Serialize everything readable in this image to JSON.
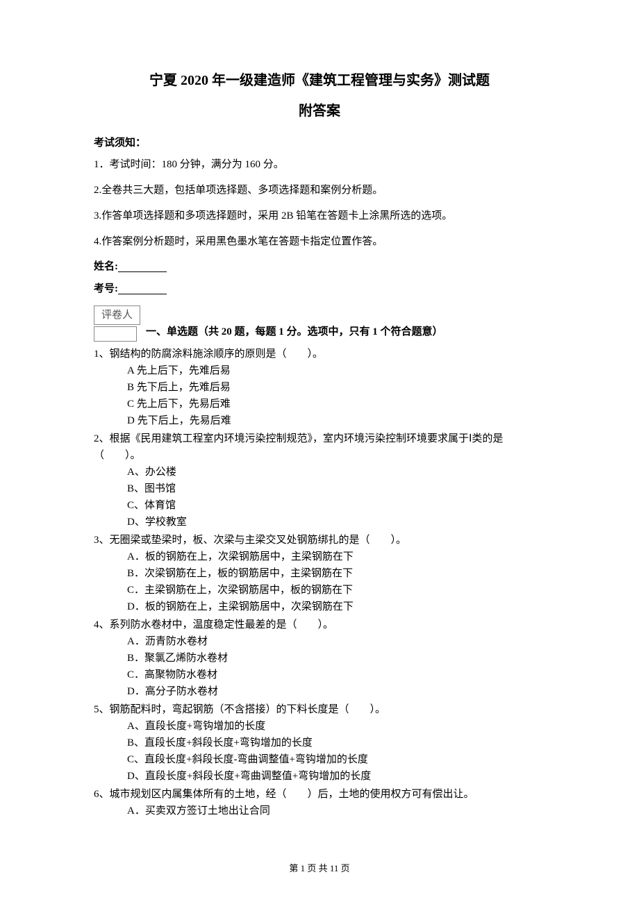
{
  "title_main": "宁夏 2020 年一级建造师《建筑工程管理与实务》测试题",
  "title_sub": "附答案",
  "notice_heading": "考试须知：",
  "notice_items": [
    "1．考试时间：180 分钟，满分为 160 分。",
    "2.全卷共三大题，包括单项选择题、多项选择题和案例分析题。",
    "3.作答单项选择题和多项选择题时，采用 2B 铅笔在答题卡上涂黑所选的选项。",
    "4.作答案例分析题时，采用黑色墨水笔在答题卡指定位置作答。"
  ],
  "name_label": "姓名:",
  "number_label": "考号:",
  "grader_label": "评卷人",
  "section1_heading": "一、单选题（共 20 题，每题 1 分。选项中，只有 1 个符合题意）",
  "questions": [
    {
      "stem": "1、钢结构的防腐涂料施涂顺序的原则是（　　）。",
      "opts": [
        "A 先上后下，先难后易",
        "B 先下后上，先难后易",
        "C 先上后下，先易后难",
        "D 先下后上，先易后难"
      ]
    },
    {
      "stem_lines": [
        "2、根据《民用建筑工程室内环境污染控制规范》，室内环境污染控制环境要求属于Ⅰ类的是",
        "（　　）。"
      ],
      "indent_second_line": false,
      "opts": [
        "A、办公楼",
        "B、图书馆",
        "C、体育馆",
        "D、学校教室"
      ]
    },
    {
      "stem": "3、无圈梁或垫梁时，板、次梁与主梁交叉处钢筋绑扎的是（　　）。",
      "opts": [
        "A．板的钢筋在上，次梁钢筋居中，主梁钢筋在下",
        "B．次梁钢筋在上，板的钢筋居中，主梁钢筋在下",
        "C．主梁钢筋在上，次梁钢筋居中，板的钢筋在下",
        "D．板的钢筋在上，主梁钢筋居中，次梁钢筋在下"
      ]
    },
    {
      "stem": "4、系列防水卷材中，温度稳定性最差的是（　　）。",
      "opts": [
        "A．沥青防水卷材",
        "B．聚氯乙烯防水卷材",
        "C．高聚物防水卷材",
        "D．高分子防水卷材"
      ]
    },
    {
      "stem": "5、钢筋配料时，弯起钢筋（不含搭接）的下料长度是（　　）。",
      "opts": [
        "A、直段长度+弯钩增加的长度",
        "B、直段长度+斜段长度+弯钩增加的长度",
        "C、直段长度+斜段长度-弯曲调整值+弯钩增加的长度",
        "D、直段长度+斜段长度+弯曲调整值+弯钩增加的长度"
      ]
    },
    {
      "stem": "6、城市规划区内属集体所有的土地，经（　　）后，土地的使用权方可有偿出让。",
      "opts": [
        "A．买卖双方签订土地出让合同"
      ]
    }
  ],
  "footer": "第 1 页 共 11 页"
}
